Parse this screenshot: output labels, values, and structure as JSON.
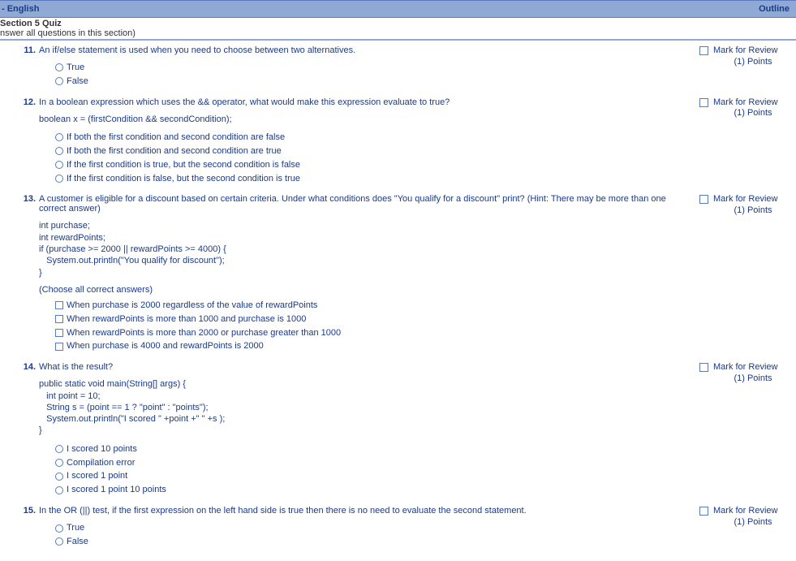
{
  "topbar": {
    "left": "- English",
    "right": "Outline"
  },
  "section": {
    "title": "Section 5 Quiz",
    "subtitle": "nswer all questions in this section)"
  },
  "review": {
    "label": "Mark for Review",
    "points": "(1) Points"
  },
  "questions": [
    {
      "num": "11.",
      "text": "An if/else statement is used when you need to choose between two alternatives.",
      "type": "radio",
      "options": [
        "True",
        "False"
      ]
    },
    {
      "num": "12.",
      "text": "In a boolean expression which uses the && operator, what would make this expression evaluate to true?",
      "code": "boolean x = (firstCondition && secondCondition);",
      "type": "radio",
      "options": [
        "If both the first condition and second condition are false",
        "If both the first condition and second condition are true",
        "If the first condition is true, but the second condition is false",
        "If the first condition is false, but the second condition is true"
      ]
    },
    {
      "num": "13.",
      "text": "A customer is eligible for a discount based on certain criteria. Under what conditions does \"You qualify for a discount\" print? (Hint: There may be more than one correct answer)",
      "code": "int purchase;\nint rewardPoints;\nif (purchase >= 2000 || rewardPoints >= 4000) {\n   System.out.println(\"You qualify for discount\");\n}",
      "choose": "(Choose all correct answers)",
      "type": "checkbox",
      "options": [
        "When purchase is 2000 regardless of the value of rewardPoints",
        "When rewardPoints is more than 1000 and purchase is 1000",
        "When rewardPoints is more than 2000 or purchase greater than 1000",
        "When purchase is 4000 and rewardPoints is 2000"
      ]
    },
    {
      "num": "14.",
      "text": "What is the result?",
      "code": "public static void main(String[] args) {\n   int point = 10;\n   String s = (point == 1 ? \"point\" : \"points\");\n   System.out.println(\"I scored \" +point +\" \" +s );\n}",
      "type": "radio",
      "options": [
        "I scored 10 points",
        "Compilation error",
        "I scored 1 point",
        "I scored 1 point 10 points"
      ]
    },
    {
      "num": "15.",
      "text": "In the OR (||) test, if the first expression on the left hand side is true then there is no need to evaluate the second statement.",
      "type": "radio",
      "options": [
        "True",
        "False"
      ]
    }
  ]
}
